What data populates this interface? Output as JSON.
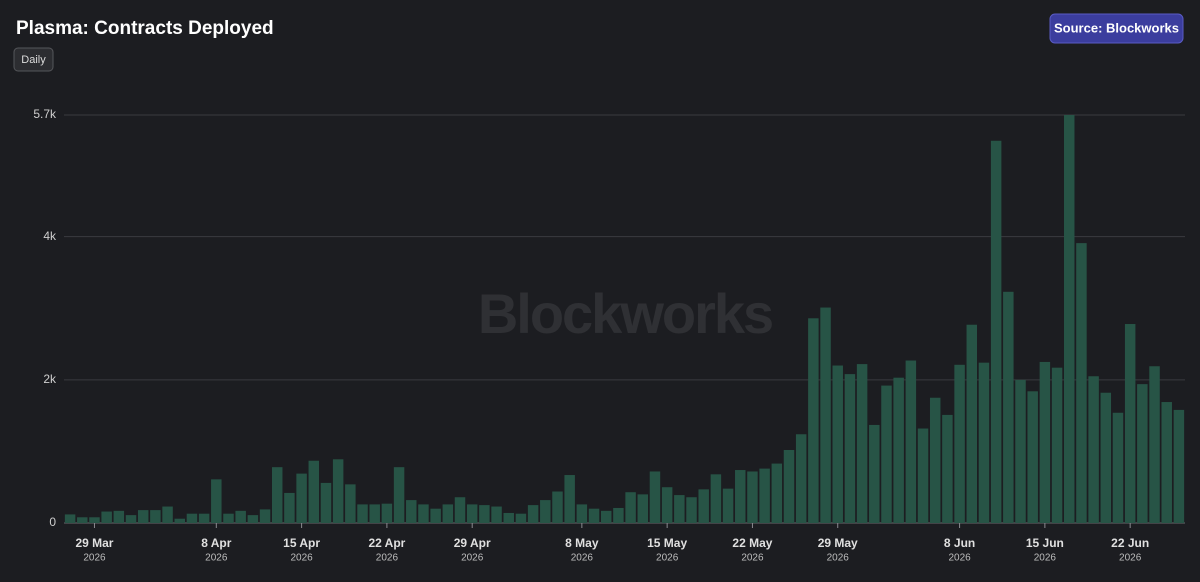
{
  "chart_data": {
    "type": "bar",
    "title": "Plasma: Contracts Deployed",
    "interval": "Daily",
    "source": "Source: Blockworks",
    "watermark": "Blockworks",
    "year_label": "2026",
    "categories": [
      null,
      null,
      "29 Mar",
      null,
      null,
      null,
      null,
      null,
      null,
      null,
      null,
      null,
      "8 Apr",
      null,
      null,
      null,
      null,
      null,
      null,
      "15 Apr",
      null,
      null,
      null,
      null,
      null,
      null,
      "22 Apr",
      null,
      null,
      null,
      null,
      null,
      null,
      "29 Apr",
      null,
      null,
      null,
      null,
      null,
      null,
      null,
      null,
      "8 May",
      null,
      null,
      null,
      null,
      null,
      null,
      "15 May",
      null,
      null,
      null,
      null,
      null,
      null,
      "22 May",
      null,
      null,
      null,
      null,
      null,
      null,
      "29 May",
      null,
      null,
      null,
      null,
      null,
      null,
      null,
      null,
      null,
      "8 Jun",
      null,
      null,
      null,
      null,
      null,
      null,
      "15 Jun",
      null,
      null,
      null,
      null,
      null,
      null,
      "22 Jun",
      null,
      null,
      null,
      null
    ],
    "values": [
      120,
      80,
      80,
      160,
      170,
      110,
      180,
      180,
      230,
      60,
      130,
      130,
      610,
      130,
      170,
      110,
      190,
      780,
      420,
      690,
      870,
      560,
      890,
      540,
      260,
      260,
      270,
      780,
      320,
      260,
      200,
      260,
      360,
      260,
      250,
      230,
      140,
      130,
      250,
      320,
      440,
      670,
      260,
      200,
      170,
      210,
      430,
      400,
      720,
      500,
      390,
      360,
      470,
      680,
      480,
      740,
      720,
      760,
      830,
      1020,
      1240,
      2860,
      3010,
      2200,
      2080,
      2220,
      1370,
      1920,
      2030,
      2270,
      1320,
      1750,
      1510,
      2210,
      2770,
      2240,
      5340,
      3230,
      2000,
      1840,
      2250,
      2170,
      5700,
      3910,
      2050,
      1820,
      1540,
      2780,
      1940,
      2190,
      1690,
      1580
    ],
    "color": "#275446",
    "ylim": [
      0,
      5700
    ],
    "yticks": [
      0,
      {
        "value": 2000,
        "label": "2k"
      },
      {
        "value": 4000,
        "label": "4k"
      },
      {
        "value": 5700,
        "label": "5.7k"
      }
    ],
    "grid": true
  }
}
